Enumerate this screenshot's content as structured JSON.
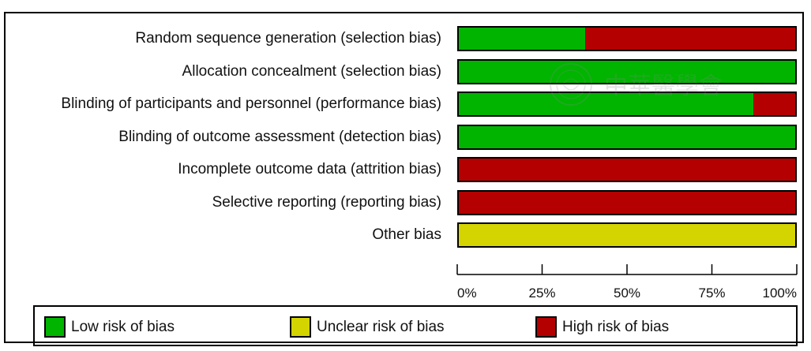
{
  "colors": {
    "low": "#00b400",
    "unclear": "#d4d400",
    "high": "#b40000"
  },
  "chart_data": {
    "type": "bar",
    "orientation": "horizontal",
    "stacked": true,
    "categories": [
      "Random sequence generation (selection bias)",
      "Allocation concealment (selection bias)",
      "Blinding of participants and personnel (performance bias)",
      "Blinding of outcome assessment (detection bias)",
      "Incomplete outcome data (attrition bias)",
      "Selective reporting (reporting bias)",
      "Other bias"
    ],
    "series": [
      {
        "name": "Low risk of bias",
        "color": "#00b400",
        "values": [
          37.5,
          100,
          87.5,
          100,
          0,
          0,
          0
        ]
      },
      {
        "name": "Unclear risk of bias",
        "color": "#d4d400",
        "values": [
          0,
          0,
          0,
          0,
          0,
          0,
          100
        ]
      },
      {
        "name": "High risk of bias",
        "color": "#b40000",
        "values": [
          62.5,
          0,
          12.5,
          0,
          100,
          100,
          0
        ]
      }
    ],
    "xlim": [
      0,
      100
    ],
    "x_ticks": [
      "0%",
      "25%",
      "50%",
      "75%",
      "100%"
    ],
    "legend_position": "bottom"
  },
  "legend": {
    "items": [
      {
        "label": "Low risk of bias",
        "color": "#00b400"
      },
      {
        "label": "Unclear risk of bias",
        "color": "#d4d400"
      },
      {
        "label": "High risk of bias",
        "color": "#b40000"
      }
    ]
  },
  "watermark": {
    "text": "中華醫學會"
  }
}
